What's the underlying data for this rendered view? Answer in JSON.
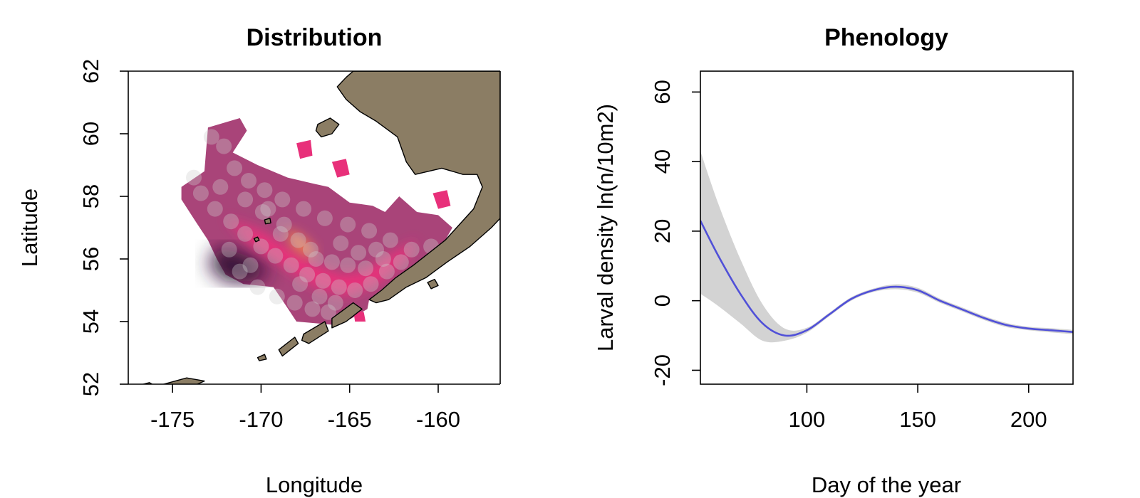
{
  "chart_data": [
    {
      "type": "heatmap",
      "title": "Distribution",
      "xlabel": "Longitude",
      "ylabel": "Latitude",
      "xlim": [
        -177.5,
        -156.5
      ],
      "ylim": [
        52,
        62
      ],
      "xticks": [
        -175,
        -170,
        -165,
        -160
      ],
      "yticks": [
        52,
        54,
        56,
        58,
        60,
        62
      ],
      "colors": {
        "land": "#8b7d64",
        "low": "#2a1030",
        "mid": "#a0306a",
        "high": "#e8307a",
        "peak": "#f07a50",
        "points": "#cfcfcf"
      },
      "land": [
        {
          "name": "alaska-mainland",
          "coords": [
            [
              -164.8,
              62
            ],
            [
              -156.5,
              62
            ],
            [
              -156.5,
              57.3
            ],
            [
              -157.0,
              57.0
            ],
            [
              -158.2,
              56.4
            ],
            [
              -159.5,
              55.9
            ],
            [
              -160.7,
              55.4
            ],
            [
              -161.8,
              55.1
            ],
            [
              -162.8,
              54.7
            ],
            [
              -163.5,
              54.6
            ],
            [
              -163.9,
              54.7
            ],
            [
              -163.2,
              55.0
            ],
            [
              -162.4,
              55.4
            ],
            [
              -161.4,
              55.8
            ],
            [
              -160.5,
              56.2
            ],
            [
              -159.6,
              56.6
            ],
            [
              -158.8,
              57.1
            ],
            [
              -158.0,
              57.6
            ],
            [
              -157.5,
              58.3
            ],
            [
              -157.8,
              58.7
            ],
            [
              -158.6,
              58.7
            ],
            [
              -159.8,
              58.9
            ],
            [
              -161.3,
              58.7
            ],
            [
              -161.8,
              59.1
            ],
            [
              -162.3,
              59.9
            ],
            [
              -163.5,
              60.4
            ],
            [
              -164.4,
              60.7
            ],
            [
              -165.2,
              61.1
            ],
            [
              -165.7,
              61.5
            ],
            [
              -165.2,
              61.8
            ],
            [
              -164.8,
              62
            ]
          ]
        },
        {
          "name": "nunivak-island",
          "coords": [
            [
              -166.8,
              60.3
            ],
            [
              -166.1,
              60.5
            ],
            [
              -165.6,
              60.3
            ],
            [
              -166.0,
              60.0
            ],
            [
              -166.6,
              59.9
            ],
            [
              -166.9,
              60.1
            ],
            [
              -166.8,
              60.3
            ]
          ]
        },
        {
          "name": "unimak-and-aleutians-east",
          "coords": [
            [
              -166.0,
              54.1
            ],
            [
              -164.8,
              54.6
            ],
            [
              -164.3,
              54.4
            ],
            [
              -165.2,
              54.0
            ],
            [
              -166.0,
              53.8
            ],
            [
              -166.0,
              54.1
            ]
          ]
        },
        {
          "name": "unalaska-island",
          "coords": [
            [
              -167.6,
              53.6
            ],
            [
              -166.4,
              54.0
            ],
            [
              -166.2,
              53.7
            ],
            [
              -167.3,
              53.3
            ],
            [
              -167.7,
              53.4
            ],
            [
              -167.6,
              53.6
            ]
          ]
        },
        {
          "name": "umnak-island",
          "coords": [
            [
              -169.0,
              53.1
            ],
            [
              -168.1,
              53.5
            ],
            [
              -167.9,
              53.3
            ],
            [
              -168.8,
              52.9
            ],
            [
              -169.0,
              53.1
            ]
          ]
        },
        {
          "name": "central-aleutians",
          "coords": [
            [
              -175.5,
              52.0
            ],
            [
              -174.2,
              52.2
            ],
            [
              -173.2,
              52.1
            ],
            [
              -174.0,
              51.9
            ],
            [
              -175.5,
              52.0
            ]
          ]
        },
        {
          "name": "western-aleutians",
          "coords": [
            [
              -177.0,
              51.95
            ],
            [
              -176.3,
              52.05
            ],
            [
              -176.0,
              51.95
            ],
            [
              -176.8,
              51.9
            ],
            [
              -177.0,
              51.95
            ]
          ]
        },
        {
          "name": "islands-of-four-mountains",
          "coords": [
            [
              -170.2,
              52.85
            ],
            [
              -169.8,
              52.95
            ],
            [
              -169.7,
              52.8
            ],
            [
              -170.1,
              52.75
            ],
            [
              -170.2,
              52.85
            ]
          ]
        },
        {
          "name": "pribilof-island",
          "coords": [
            [
              -169.8,
              57.25
            ],
            [
              -169.5,
              57.3
            ],
            [
              -169.45,
              57.15
            ],
            [
              -169.75,
              57.12
            ],
            [
              -169.8,
              57.25
            ]
          ]
        },
        {
          "name": "st-george-island",
          "coords": [
            [
              -170.4,
              56.65
            ],
            [
              -170.2,
              56.7
            ],
            [
              -170.1,
              56.6
            ],
            [
              -170.3,
              56.55
            ],
            [
              -170.4,
              56.65
            ]
          ]
        },
        {
          "name": "shumagin-islands",
          "coords": [
            [
              -160.6,
              55.25
            ],
            [
              -160.2,
              55.35
            ],
            [
              -160.0,
              55.15
            ],
            [
              -160.4,
              55.05
            ],
            [
              -160.6,
              55.25
            ]
          ]
        }
      ],
      "density_region": [
        [
          -173,
          60.2
        ],
        [
          -171.2,
          60.5
        ],
        [
          -170.8,
          60.1
        ],
        [
          -171.6,
          59.4
        ],
        [
          -170.2,
          59.0
        ],
        [
          -168.5,
          58.6
        ],
        [
          -167.0,
          58.4
        ],
        [
          -166.2,
          58.3
        ],
        [
          -165.0,
          57.8
        ],
        [
          -163.7,
          57.7
        ],
        [
          -163.0,
          57.5
        ],
        [
          -162.2,
          58.0
        ],
        [
          -161.2,
          57.5
        ],
        [
          -160.0,
          57.4
        ],
        [
          -159.2,
          57.0
        ],
        [
          -159.6,
          56.6
        ],
        [
          -160.5,
          56.2
        ],
        [
          -161.4,
          55.8
        ],
        [
          -162.4,
          55.4
        ],
        [
          -163.2,
          55.0
        ],
        [
          -163.9,
          54.7
        ],
        [
          -164.0,
          54.4
        ],
        [
          -164.9,
          54.1
        ],
        [
          -166.0,
          53.9
        ],
        [
          -168.0,
          54.0
        ],
        [
          -168.7,
          54.6
        ],
        [
          -169.3,
          55.1
        ],
        [
          -171.0,
          55.2
        ],
        [
          -172.0,
          55.5
        ],
        [
          -172.5,
          56.0
        ],
        [
          -173.0,
          56.6
        ],
        [
          -173.7,
          57.2
        ],
        [
          -174.5,
          57.9
        ],
        [
          -174.5,
          58.3
        ],
        [
          -173.2,
          58.8
        ],
        [
          -173,
          60.2
        ]
      ],
      "density_core": [
        [
          -172.0,
          57.3
        ],
        [
          -170.0,
          56.9
        ],
        [
          -168.3,
          56.3
        ],
        [
          -166.8,
          55.8
        ],
        [
          -165.5,
          55.5
        ],
        [
          -164.2,
          55.6
        ],
        [
          -162.5,
          56.2
        ],
        [
          -161.2,
          56.6
        ],
        [
          -161.8,
          56.0
        ],
        [
          -163.4,
          55.2
        ],
        [
          -165.2,
          54.8
        ],
        [
          -167.0,
          55.1
        ],
        [
          -168.6,
          55.7
        ],
        [
          -170.5,
          56.4
        ],
        [
          -172.0,
          57.3
        ]
      ],
      "density_hotspot": [
        [
          -168.6,
          57.0
        ],
        [
          -167.6,
          56.7
        ],
        [
          -166.8,
          56.2
        ],
        [
          -167.4,
          56.05
        ],
        [
          -168.3,
          56.4
        ],
        [
          -168.6,
          57.0
        ]
      ],
      "density_dark_patch": [
        [
          -173.0,
          55.8
        ],
        [
          -172.0,
          55.3
        ],
        [
          -170.5,
          55.3
        ],
        [
          -169.4,
          55.6
        ],
        [
          -170.8,
          56.1
        ],
        [
          -172.3,
          56.4
        ],
        [
          -173.0,
          55.8
        ]
      ],
      "extra_patches": [
        {
          "name": "patch-north",
          "coords": [
            [
              -168.0,
              59.7
            ],
            [
              -167.2,
              59.8
            ],
            [
              -167.1,
              59.3
            ],
            [
              -167.8,
              59.2
            ],
            [
              -168.0,
              59.7
            ]
          ]
        },
        {
          "name": "patch-north-east",
          "coords": [
            [
              -166.0,
              59.1
            ],
            [
              -165.2,
              59.2
            ],
            [
              -165.0,
              58.7
            ],
            [
              -165.7,
              58.6
            ],
            [
              -166.0,
              59.1
            ]
          ]
        },
        {
          "name": "patch-bristol",
          "coords": [
            [
              -160.3,
              58.1
            ],
            [
              -159.5,
              58.2
            ],
            [
              -159.3,
              57.7
            ],
            [
              -160.0,
              57.6
            ],
            [
              -160.3,
              58.1
            ]
          ]
        },
        {
          "name": "patch-unimak",
          "coords": [
            [
              -164.8,
              54.4
            ],
            [
              -164.2,
              54.3
            ],
            [
              -164.1,
              54.0
            ],
            [
              -164.7,
              54.0
            ],
            [
              -164.8,
              54.4
            ]
          ]
        }
      ],
      "sample_points": [
        [
          -172.8,
          59.9
        ],
        [
          -172.1,
          59.6
        ],
        [
          -171.5,
          58.9
        ],
        [
          -170.7,
          58.5
        ],
        [
          -169.8,
          58.2
        ],
        [
          -168.8,
          57.9
        ],
        [
          -167.6,
          57.6
        ],
        [
          -166.4,
          57.3
        ],
        [
          -165.1,
          57.1
        ],
        [
          -163.9,
          56.9
        ],
        [
          -162.7,
          56.6
        ],
        [
          -161.5,
          56.3
        ],
        [
          -160.4,
          56.4
        ],
        [
          -173.4,
          58.1
        ],
        [
          -172.6,
          57.6
        ],
        [
          -171.7,
          57.2
        ],
        [
          -170.9,
          56.8
        ],
        [
          -170.0,
          56.4
        ],
        [
          -169.2,
          56.1
        ],
        [
          -168.3,
          55.8
        ],
        [
          -167.4,
          55.5
        ],
        [
          -166.5,
          55.3
        ],
        [
          -165.6,
          55.1
        ],
        [
          -164.7,
          55.0
        ],
        [
          -163.8,
          55.2
        ],
        [
          -162.9,
          55.6
        ],
        [
          -171.2,
          55.6
        ],
        [
          -170.2,
          55.1
        ],
        [
          -169.1,
          54.8
        ],
        [
          -168.1,
          54.6
        ],
        [
          -167.1,
          54.4
        ],
        [
          -166.2,
          54.3
        ],
        [
          -169.6,
          57.6
        ],
        [
          -168.7,
          57.1
        ],
        [
          -167.9,
          56.6
        ],
        [
          -166.9,
          56.0
        ],
        [
          -166.0,
          55.9
        ],
        [
          -165.1,
          55.8
        ],
        [
          -164.1,
          55.7
        ],
        [
          -163.1,
          56.0
        ],
        [
          -162.1,
          55.9
        ],
        [
          -173.8,
          58.6
        ],
        [
          -172.3,
          58.3
        ],
        [
          -170.9,
          57.9
        ],
        [
          -169.9,
          57.5
        ],
        [
          -168.9,
          56.8
        ],
        [
          -167.2,
          56.3
        ],
        [
          -165.5,
          56.5
        ],
        [
          -164.5,
          56.2
        ],
        [
          -163.5,
          56.3
        ],
        [
          -167.8,
          55.2
        ],
        [
          -166.7,
          54.8
        ],
        [
          -165.8,
          54.6
        ],
        [
          -170.6,
          55.8
        ],
        [
          -171.8,
          56.3
        ]
      ]
    },
    {
      "type": "line",
      "title": "Phenology",
      "xlabel": "Day of the year",
      "ylabel": "Larval density ln(n/10m2)",
      "xlim": [
        52,
        220
      ],
      "ylim": [
        -24,
        66
      ],
      "xticks": [
        100,
        150,
        200
      ],
      "yticks": [
        -20,
        0,
        20,
        40,
        60
      ],
      "grid": false,
      "colors": {
        "line": "#5050d8",
        "band": "#d3d3d3"
      },
      "x": [
        52,
        60,
        70,
        80,
        90,
        100,
        110,
        120,
        130,
        140,
        150,
        160,
        170,
        180,
        190,
        200,
        210,
        220
      ],
      "y": [
        23,
        13,
        2,
        -6.5,
        -10,
        -8.5,
        -4,
        0.5,
        3,
        4,
        3,
        0,
        -2.5,
        -5,
        -7,
        -8,
        -8.5,
        -9
      ],
      "lower": [
        2,
        -1.5,
        -6.5,
        -11.5,
        -11.5,
        -9.2,
        -4.5,
        0,
        2.5,
        3.3,
        2.3,
        -0.6,
        -3.1,
        -5.6,
        -7.6,
        -8.5,
        -9.1,
        -9.6
      ],
      "upper": [
        43,
        28,
        12,
        -1,
        -8,
        -7.8,
        -3.5,
        1,
        3.5,
        4.7,
        3.7,
        0.6,
        -1.9,
        -4.4,
        -6.4,
        -7.5,
        -7.9,
        -8.4
      ]
    }
  ]
}
